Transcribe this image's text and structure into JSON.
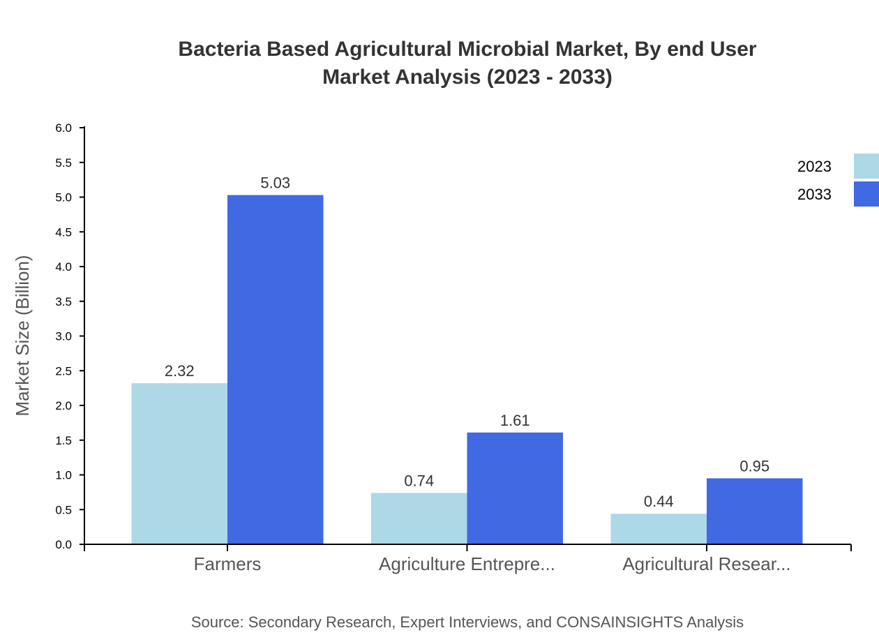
{
  "chart_data": {
    "type": "bar",
    "title_lines": [
      "Bacteria Based Agricultural Microbial Market, By end User",
      "Market Analysis (2023 - 2033)"
    ],
    "xlabel": "",
    "ylabel": "Market Size (Billion)",
    "ylim": [
      0,
      6
    ],
    "yticks": [
      "0.0",
      "0.5",
      "1.0",
      "1.5",
      "2.0",
      "2.5",
      "3.0",
      "3.5",
      "4.0",
      "4.5",
      "5.0",
      "5.5",
      "6.0"
    ],
    "categories": [
      "Farmers",
      "Agriculture Entrepre...",
      "Agricultural Resear..."
    ],
    "series": [
      {
        "name": "2023",
        "color": "#ADD8E6",
        "values": [
          2.32,
          0.74,
          0.44
        ],
        "labels": [
          "2.32",
          "0.74",
          "0.44"
        ]
      },
      {
        "name": "2033",
        "color": "#4169E1",
        "values": [
          5.03,
          1.61,
          0.95
        ],
        "labels": [
          "5.03",
          "1.61",
          "0.95"
        ]
      }
    ],
    "grid": false,
    "legend": "top-right",
    "source": "Source: Secondary Research, Expert Interviews, and CONSAINSIGHTS Analysis"
  }
}
